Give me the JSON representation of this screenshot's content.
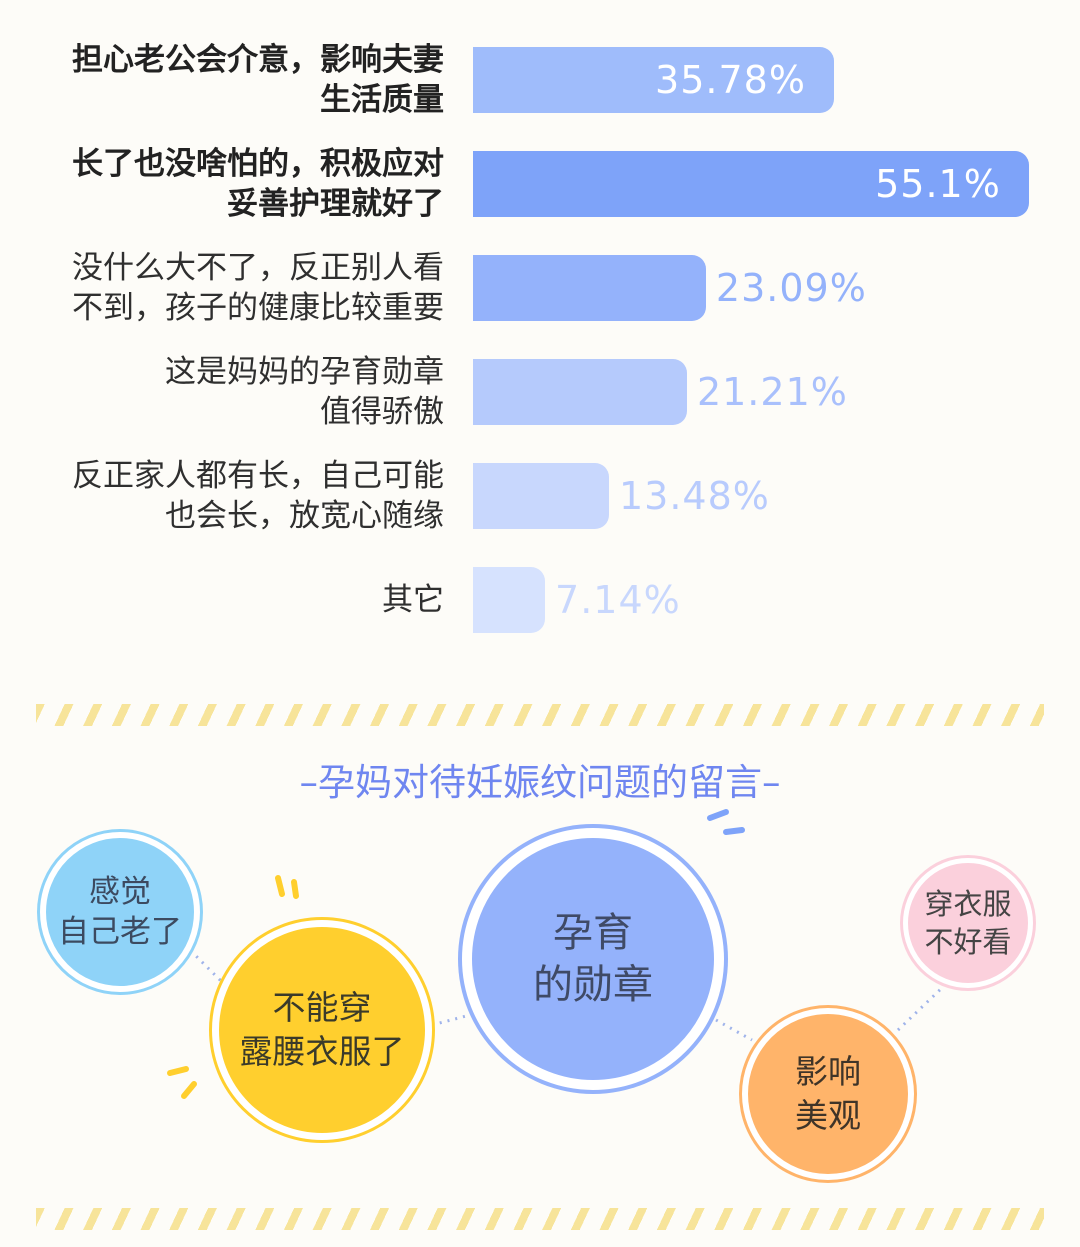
{
  "chart_data": {
    "type": "bar",
    "orientation": "horizontal",
    "categories": [
      "担心老公会介意，影响夫妻\n生活质量",
      "长了也没啥怕的，积极应对\n妥善护理就好了",
      "没什么大不了，反正别人看\n不到，孩子的健康比较重要",
      "这是妈妈的孕育勋章\n值得骄傲",
      "反正家人都有长，自己可能\n也会长，放宽心随缘",
      "其它"
    ],
    "values": [
      35.78,
      55.1,
      23.09,
      21.21,
      13.48,
      7.14
    ],
    "value_labels": [
      "35.78%",
      "55.1%",
      "23.09%",
      "21.21%",
      "13.48%",
      "7.14%"
    ],
    "bar_colors": [
      "#9fbcfb",
      "#7ea3f9",
      "#94b2fb",
      "#b5cafc",
      "#c8d7fd",
      "#d6e2fe"
    ],
    "label_colors": [
      "#ffffff",
      "#ffffff",
      "#94b2fb",
      "#a9c0fc",
      "#b8cbfd",
      "#c8d7fd"
    ],
    "xlim": [
      0,
      57.0
    ],
    "grid": false,
    "legend": "none"
  },
  "section": {
    "title": "–孕妈对待妊娠纹问题的留言–"
  },
  "bubbles": {
    "feel_old": "感觉\n自己老了",
    "no_crop_top": "不能穿\n露腰衣服了",
    "medal": "孕育\n的勋章",
    "looks": "影响\n美观",
    "clothes": "穿衣服\n不好看"
  },
  "colors": {
    "accent": "#6f86f0",
    "stripe": "#f7e49a",
    "bubble_blue": "#8fd3f8",
    "bubble_yellow": "#ffcf2e",
    "bubble_periwinkle": "#94b2fb",
    "bubble_orange": "#ffb46a",
    "bubble_pink": "#fbd0dc"
  }
}
